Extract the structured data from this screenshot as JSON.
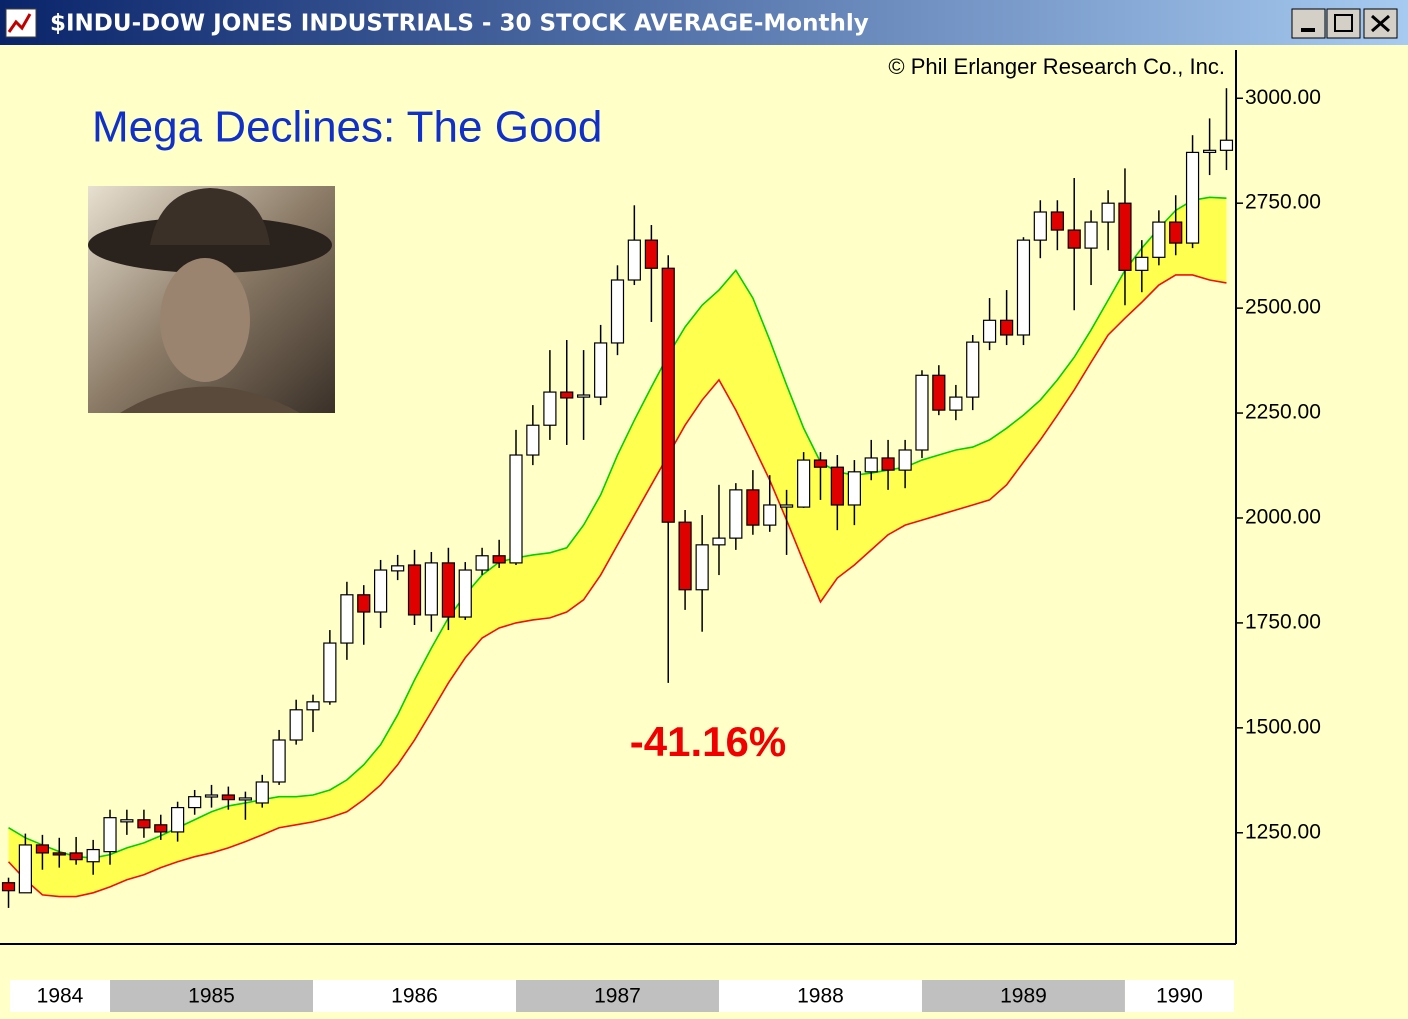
{
  "chart_data": {
    "type": "candlestick",
    "title": "$INDU-DOW JONES INDUSTRIALS - 30 STOCK AVERAGE-Monthly",
    "annotations": [
      "© Phil Erlanger Research Co., Inc.",
      "Mega Declines: The Good",
      "-41.16%"
    ],
    "x": [
      1984.5,
      1984.583,
      1984.667,
      1984.75,
      1984.833,
      1984.917,
      1985,
      1985.083,
      1985.167,
      1985.25,
      1985.333,
      1985.417,
      1985.5,
      1985.583,
      1985.667,
      1985.75,
      1985.833,
      1985.917,
      1986,
      1986.083,
      1986.167,
      1986.25,
      1986.333,
      1986.417,
      1986.5,
      1986.583,
      1986.667,
      1986.75,
      1986.833,
      1986.917,
      1987,
      1987.083,
      1987.167,
      1987.25,
      1987.333,
      1987.417,
      1987.5,
      1987.583,
      1987.667,
      1987.75,
      1987.833,
      1987.917,
      1988,
      1988.083,
      1988.167,
      1988.25,
      1988.333,
      1988.417,
      1988.5,
      1988.583,
      1988.667,
      1988.75,
      1988.833,
      1988.917,
      1989,
      1989.083,
      1989.167,
      1989.25,
      1989.333,
      1989.417,
      1989.5,
      1989.583,
      1989.667,
      1989.75,
      1989.833,
      1989.917,
      1990,
      1990.083,
      1990.167,
      1990.25,
      1990.333,
      1990.417,
      1990.5
    ],
    "open": [
      1131,
      1107,
      1221,
      1202,
      1202,
      1181,
      1205,
      1276,
      1281,
      1269,
      1252,
      1310,
      1336,
      1340,
      1329,
      1321,
      1371,
      1471,
      1543,
      1562,
      1702,
      1817,
      1776,
      1874,
      1888,
      1769,
      1893,
      1764,
      1876,
      1910,
      1893,
      2150,
      2221,
      2300,
      2288,
      2288,
      2417,
      2567,
      2662,
      2595,
      1990,
      1829,
      1936,
      1952,
      2067,
      1983,
      2026,
      2026,
      2138,
      2121,
      2031,
      2110,
      2143,
      2114,
      2162,
      2340,
      2257,
      2288,
      2419,
      2471,
      2436,
      2662,
      2729,
      2686,
      2643,
      2705,
      2750,
      2590,
      2621,
      2705,
      2655,
      2871,
      2876
    ],
    "high": [
      1143,
      1248,
      1245,
      1238,
      1240,
      1233,
      1305,
      1305,
      1305,
      1293,
      1324,
      1352,
      1364,
      1360,
      1348,
      1388,
      1495,
      1567,
      1579,
      1733,
      1848,
      1840,
      1900,
      1912,
      1924,
      1919,
      1929,
      1895,
      1929,
      1948,
      2210,
      2269,
      2400,
      2424,
      2400,
      2460,
      2602,
      2745,
      2698,
      2626,
      2019,
      2007,
      2079,
      2083,
      2114,
      2102,
      2067,
      2157,
      2157,
      2150,
      2138,
      2186,
      2186,
      2186,
      2352,
      2364,
      2317,
      2436,
      2524,
      2543,
      2669,
      2757,
      2757,
      2810,
      2733,
      2781,
      2833,
      2662,
      2733,
      2769,
      2912,
      2952,
      3024
    ],
    "low": [
      1071,
      1107,
      1162,
      1167,
      1174,
      1150,
      1174,
      1245,
      1238,
      1233,
      1229,
      1293,
      1310,
      1305,
      1281,
      1310,
      1364,
      1460,
      1490,
      1555,
      1662,
      1698,
      1738,
      1852,
      1745,
      1729,
      1733,
      1757,
      1864,
      1881,
      1888,
      2126,
      2186,
      2174,
      2186,
      2269,
      2388,
      2555,
      2467,
      1607,
      1781,
      1729,
      1864,
      1924,
      1960,
      1967,
      1912,
      2024,
      2043,
      1971,
      1983,
      2090,
      2067,
      2071,
      2143,
      2245,
      2233,
      2257,
      2400,
      2412,
      2412,
      2619,
      2638,
      2495,
      2555,
      2638,
      2507,
      2538,
      2602,
      2626,
      2643,
      2817,
      2829
    ],
    "close": [
      1112,
      1221,
      1202,
      1198,
      1186,
      1210,
      1286,
      1281,
      1262,
      1252,
      1310,
      1336,
      1340,
      1329,
      1333,
      1371,
      1471,
      1543,
      1562,
      1702,
      1817,
      1776,
      1876,
      1886,
      1769,
      1893,
      1764,
      1876,
      1910,
      1893,
      2150,
      2221,
      2300,
      2286,
      2293,
      2417,
      2567,
      2662,
      2595,
      1990,
      1829,
      1936,
      1952,
      2067,
      1983,
      2031,
      2031,
      2138,
      2121,
      2031,
      2110,
      2143,
      2114,
      2162,
      2340,
      2257,
      2288,
      2419,
      2471,
      2436,
      2662,
      2729,
      2686,
      2643,
      2705,
      2750,
      2590,
      2621,
      2705,
      2655,
      2871,
      2876,
      2900
    ],
    "up_color": "#ffffff",
    "down_color": "#e00000",
    "upper_band": {
      "color": "#00d000",
      "values": [
        1262,
        1238,
        1221,
        1205,
        1193,
        1190,
        1198,
        1214,
        1226,
        1243,
        1262,
        1281,
        1300,
        1314,
        1321,
        1329,
        1336,
        1336,
        1340,
        1352,
        1376,
        1412,
        1460,
        1531,
        1614,
        1690,
        1762,
        1817,
        1864,
        1895,
        1905,
        1912,
        1917,
        1929,
        1983,
        2055,
        2150,
        2233,
        2312,
        2388,
        2455,
        2507,
        2543,
        2590,
        2524,
        2424,
        2317,
        2214,
        2133,
        2110,
        2102,
        2107,
        2114,
        2121,
        2138,
        2150,
        2162,
        2169,
        2186,
        2214,
        2245,
        2281,
        2329,
        2383,
        2448,
        2519,
        2590,
        2643,
        2690,
        2733,
        2757,
        2764,
        2762
      ]
    },
    "lower_band": {
      "color": "#f01010",
      "values": [
        1181,
        1138,
        1102,
        1098,
        1098,
        1107,
        1121,
        1138,
        1150,
        1167,
        1181,
        1193,
        1202,
        1214,
        1229,
        1245,
        1262,
        1269,
        1276,
        1286,
        1300,
        1329,
        1364,
        1412,
        1471,
        1538,
        1607,
        1667,
        1714,
        1738,
        1750,
        1757,
        1762,
        1776,
        1805,
        1864,
        1936,
        2007,
        2079,
        2150,
        2221,
        2281,
        2329,
        2257,
        2174,
        2090,
        1995,
        1895,
        1800,
        1857,
        1888,
        1924,
        1960,
        1983,
        1995,
        2007,
        2019,
        2031,
        2043,
        2079,
        2133,
        2186,
        2245,
        2305,
        2371,
        2436,
        2476,
        2514,
        2555,
        2579,
        2579,
        2567,
        2560
      ]
    },
    "band_fill": "#ffff50",
    "xlim": [
      1984.458,
      1990.547
    ],
    "xticks": [
      1984,
      1985,
      1986,
      1987,
      1988,
      1989,
      1990
    ],
    "ylim": [
      985,
      3115
    ],
    "yticks": [
      {
        "value": 1250,
        "label": "1250.00"
      },
      {
        "value": 1500,
        "label": "1500.00"
      },
      {
        "value": 1750,
        "label": "1750.00"
      },
      {
        "value": 2000,
        "label": "2000.00"
      },
      {
        "value": 2250,
        "label": "2250.00"
      },
      {
        "value": 2500,
        "label": "2500.00"
      },
      {
        "value": 2750,
        "label": "2750.00"
      },
      {
        "value": 3000,
        "label": "3000.00"
      }
    ]
  }
}
